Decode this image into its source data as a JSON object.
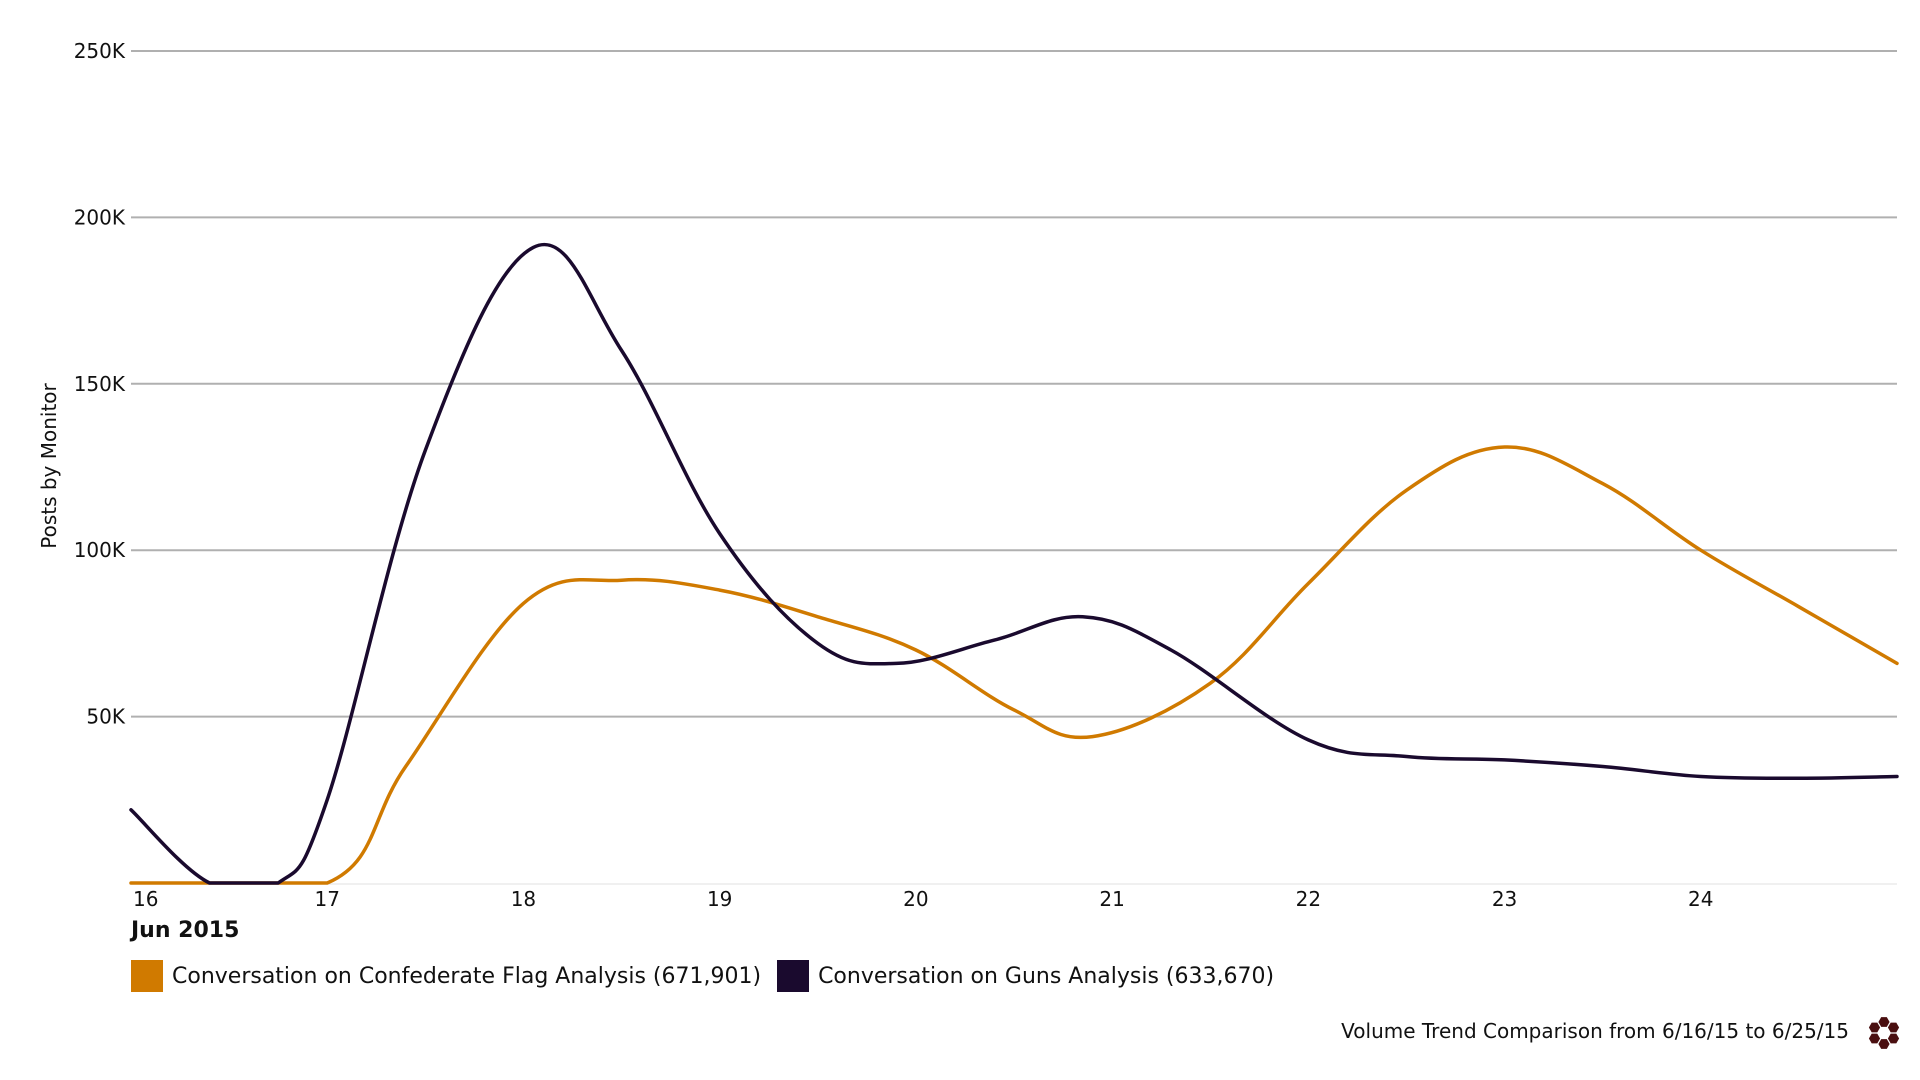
{
  "chart_data": {
    "type": "line",
    "title": "",
    "xlabel": "Jun 2015",
    "ylabel": "Posts by Monitor",
    "x": [
      16,
      17,
      18,
      19,
      20,
      21,
      22,
      23,
      24
    ],
    "x_tick_labels": [
      "16",
      "17",
      "18",
      "19",
      "20",
      "21",
      "22",
      "23",
      "24"
    ],
    "x_range": [
      16,
      25
    ],
    "ylim": [
      0,
      250000
    ],
    "y_ticks": [
      50000,
      100000,
      150000,
      200000,
      250000
    ],
    "y_tick_labels": [
      "50K",
      "100K",
      "150K",
      "200K",
      "250K"
    ],
    "grid": true,
    "legend_position": "bottom-left",
    "series": [
      {
        "name": "Conversation on Confederate Flag Analysis (671,901)",
        "color": "#D07A00",
        "points": [
          [
            16,
            0
          ],
          [
            17,
            0
          ],
          [
            17.4,
            35000
          ],
          [
            18,
            84000
          ],
          [
            18.5,
            91000
          ],
          [
            19,
            88000
          ],
          [
            19.5,
            80000
          ],
          [
            20,
            70000
          ],
          [
            20.5,
            52000
          ],
          [
            20.9,
            44000
          ],
          [
            21.5,
            60000
          ],
          [
            22,
            90000
          ],
          [
            22.5,
            118000
          ],
          [
            23,
            131000
          ],
          [
            23.5,
            120000
          ],
          [
            24,
            100000
          ],
          [
            24.5,
            83000
          ],
          [
            25,
            66000
          ]
        ]
      },
      {
        "name": "Conversation on Guns Analysis (633,670)",
        "color": "#1A0A2E",
        "points": [
          [
            16,
            22000
          ],
          [
            16.4,
            0
          ],
          [
            16.75,
            0
          ],
          [
            17,
            25000
          ],
          [
            17.5,
            130000
          ],
          [
            18.05,
            191000
          ],
          [
            18.5,
            160000
          ],
          [
            19,
            105000
          ],
          [
            19.5,
            72000
          ],
          [
            19.9,
            66000
          ],
          [
            20.4,
            73000
          ],
          [
            20.85,
            80000
          ],
          [
            21.3,
            70000
          ],
          [
            22,
            43000
          ],
          [
            22.5,
            38000
          ],
          [
            23,
            37000
          ],
          [
            23.5,
            35000
          ],
          [
            24,
            32000
          ],
          [
            24.5,
            31500
          ],
          [
            25,
            32000
          ]
        ]
      }
    ]
  },
  "legend": {
    "items": [
      {
        "label": "Conversation on Confederate Flag Analysis (671,901)",
        "color": "#D07A00"
      },
      {
        "label": "Conversation on Guns Analysis (633,670)",
        "color": "#1A0A2E"
      }
    ]
  },
  "caption": "Volume Trend Comparison from 6/16/15 to 6/25/15",
  "logo_icon": "hexagon-cluster-logo",
  "colors": {
    "grid": "#B0B0B0",
    "logo": "#4A0F10"
  }
}
